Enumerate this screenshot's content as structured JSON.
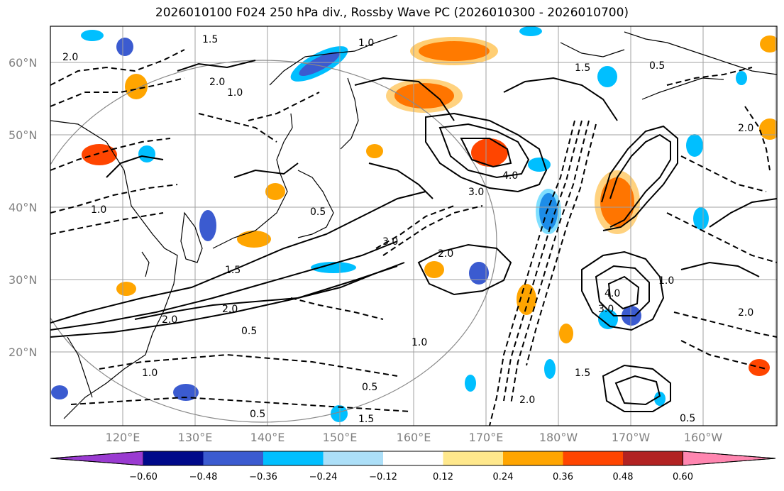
{
  "title": "2026010100 F024 250 hPa div., Rossby Wave PC (2026010300 - 2026010700)",
  "lat_labels": [
    "60°N",
    "50°N",
    "40°N",
    "30°N",
    "20°N"
  ],
  "lon_labels": [
    "120°E",
    "130°E",
    "140°E",
    "150°E",
    "160°E",
    "170°E",
    "180°W",
    "170°W",
    "160°W"
  ],
  "colorbar": {
    "colors": [
      "#9a3bd1",
      "#000a8a",
      "#3b5bd0",
      "#00bfff",
      "#acdff8",
      "#ffffff",
      "#ffe88c",
      "#ffa500",
      "#ff4500",
      "#b22222",
      "#ff86b0"
    ],
    "tick_labels": [
      "−0.60",
      "−0.48",
      "−0.36",
      "−0.24",
      "−0.12",
      "0.12",
      "0.24",
      "0.36",
      "0.48",
      "0.60"
    ]
  },
  "contour_labels": [
    "1.5",
    "0.5",
    "1.0",
    "2.0",
    "1.0",
    "1.5",
    "2.0",
    "3.0",
    "4.0",
    "0.5",
    "2.0",
    "1.5",
    "0.5",
    "1.0",
    "2.0",
    "3.0",
    "2.0",
    "4.0",
    "3.0",
    "1.0",
    "2.0",
    "0.5",
    "1.5",
    "2.0",
    "1.0",
    "0.5",
    "1.5",
    "2.0",
    "1.0",
    "0.5"
  ]
}
